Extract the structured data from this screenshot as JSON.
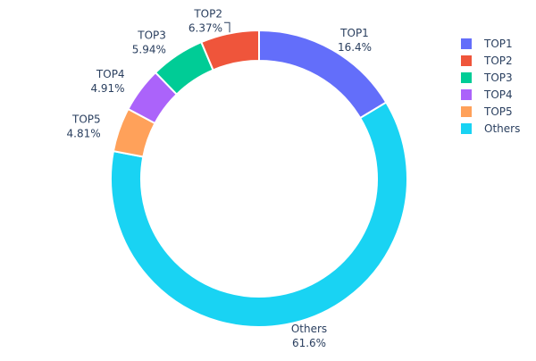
{
  "chart_data": {
    "type": "pie",
    "hole": true,
    "labels": [
      "TOP1",
      "Others",
      "TOP5",
      "TOP4",
      "TOP3",
      "TOP2"
    ],
    "values": [
      16.4,
      61.6,
      4.81,
      4.91,
      5.94,
      6.37
    ],
    "value_labels": [
      "16.4%",
      "61.6%",
      "4.81%",
      "4.91%",
      "5.94%",
      "6.37%"
    ],
    "colors": [
      "#636efa",
      "#19d3f3",
      "#ffa15a",
      "#ab63fa",
      "#00cc96",
      "#ef553b"
    ],
    "direction": "clockwise",
    "legend": {
      "placement": "top-right",
      "items": [
        {
          "label": "TOP1",
          "color": "#636efa"
        },
        {
          "label": "TOP2",
          "color": "#ef553b"
        },
        {
          "label": "TOP3",
          "color": "#00cc96"
        },
        {
          "label": "TOP4",
          "color": "#ab63fa"
        },
        {
          "label": "TOP5",
          "color": "#ffa15a"
        },
        {
          "label": "Others",
          "color": "#19d3f3"
        }
      ]
    }
  }
}
